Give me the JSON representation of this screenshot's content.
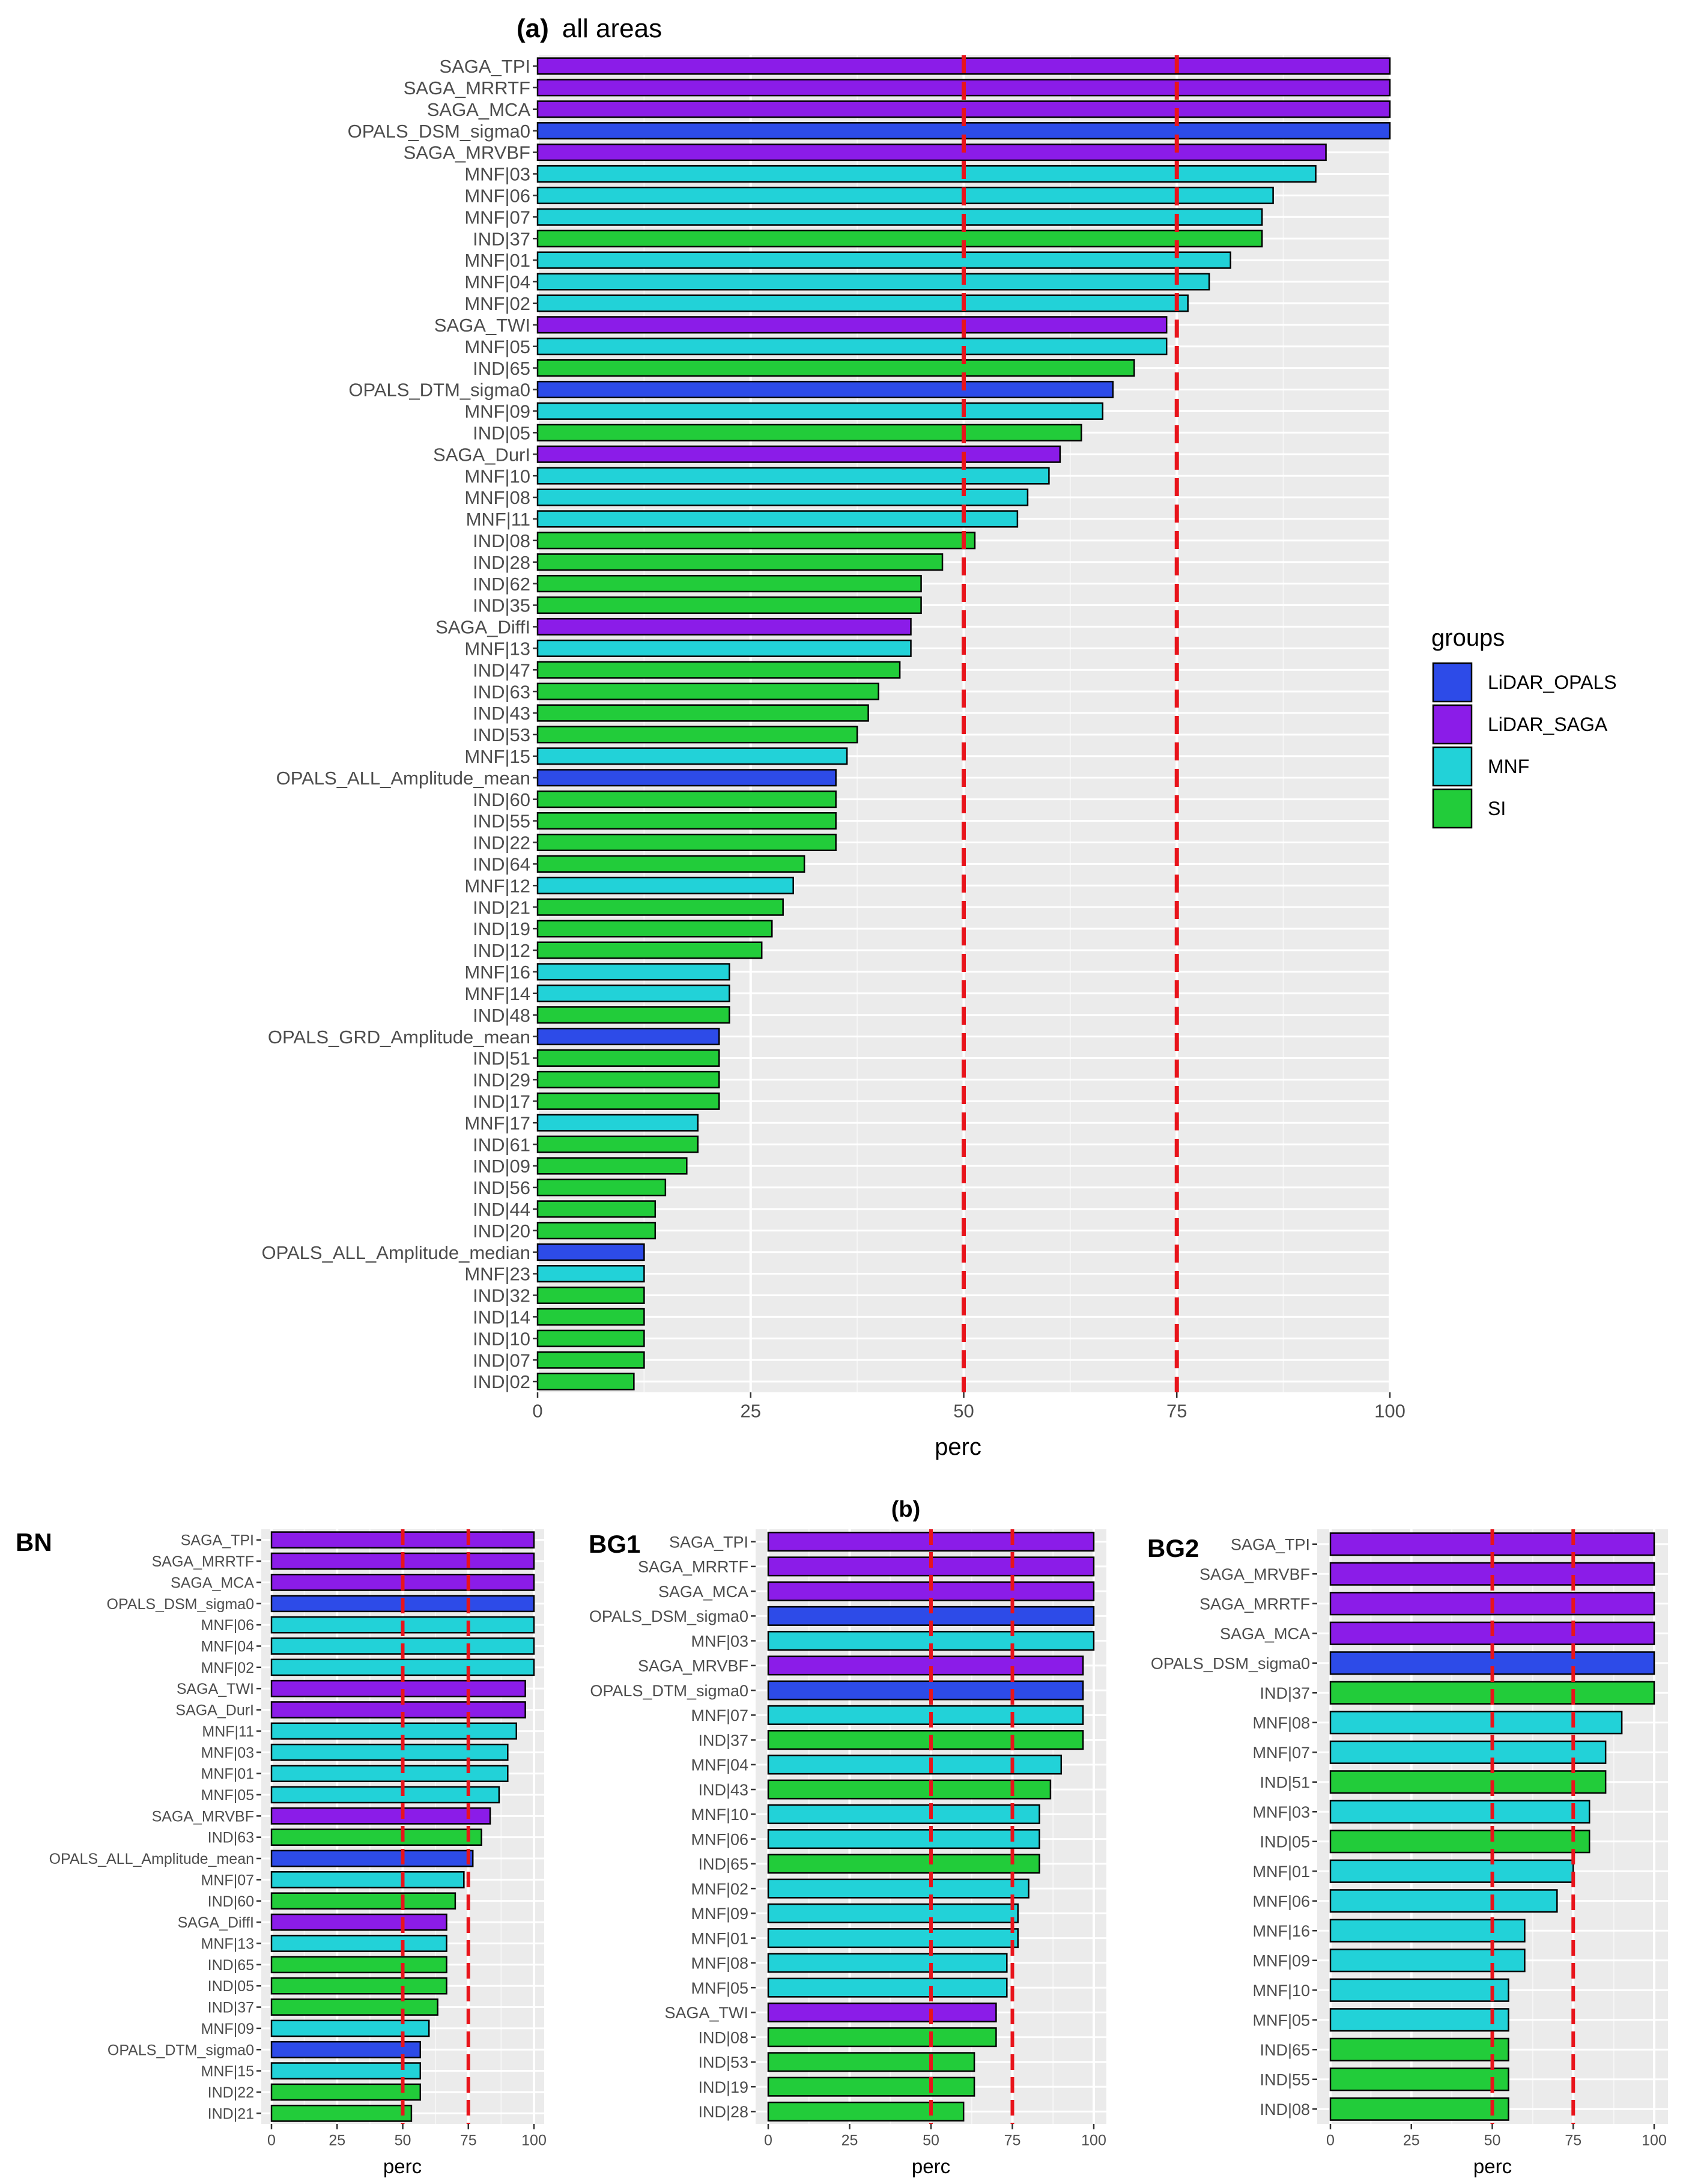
{
  "figure_label": "(b)",
  "chart_data": [
    {
      "id": "main",
      "type": "bar",
      "orientation": "horizontal",
      "title": "(a)  all areas",
      "xlabel": "perc",
      "ylabel": "",
      "xlim": [
        0,
        100
      ],
      "xticks": [
        0,
        25,
        50,
        75,
        100
      ],
      "reference_lines": [
        50,
        75
      ],
      "legend": {
        "title": "groups",
        "position": "right",
        "entries": [
          {
            "group": "LiDAR_OPALS",
            "label": "LiDAR_OPALS",
            "color": "#2d4be8"
          },
          {
            "group": "LiDAR_SAGA",
            "label": "LiDAR_SAGA",
            "color": "#8b1ce8"
          },
          {
            "group": "MNF",
            "label": "MNF",
            "color": "#22d2d8"
          },
          {
            "group": "SI",
            "label": "SI",
            "color": "#22cc3a"
          }
        ]
      },
      "categories": [
        "SAGA_TPI",
        "SAGA_MRRTF",
        "SAGA_MCA",
        "OPALS_DSM_sigma0",
        "SAGA_MRVBF",
        "MNF|03",
        "MNF|06",
        "MNF|07",
        "IND|37",
        "MNF|01",
        "MNF|04",
        "MNF|02",
        "SAGA_TWI",
        "MNF|05",
        "IND|65",
        "OPALS_DTM_sigma0",
        "MNF|09",
        "IND|05",
        "SAGA_DurI",
        "MNF|10",
        "MNF|08",
        "MNF|11",
        "IND|08",
        "IND|28",
        "IND|62",
        "IND|35",
        "SAGA_DiffI",
        "MNF|13",
        "IND|47",
        "IND|63",
        "IND|43",
        "IND|53",
        "MNF|15",
        "OPALS_ALL_Amplitude_mean",
        "IND|60",
        "IND|55",
        "IND|22",
        "IND|64",
        "MNF|12",
        "IND|21",
        "IND|19",
        "IND|12",
        "MNF|16",
        "MNF|14",
        "IND|48",
        "OPALS_GRD_Amplitude_mean",
        "IND|51",
        "IND|29",
        "IND|17",
        "MNF|17",
        "IND|61",
        "IND|09",
        "IND|56",
        "IND|44",
        "IND|20",
        "OPALS_ALL_Amplitude_median",
        "MNF|23",
        "IND|32",
        "IND|14",
        "IND|10",
        "IND|07",
        "IND|02"
      ],
      "values": [
        100,
        100,
        100,
        100,
        92.5,
        91.3,
        86.3,
        85,
        85,
        81.3,
        78.8,
        76.3,
        73.8,
        73.8,
        70,
        67.5,
        66.3,
        63.8,
        61.3,
        60,
        57.5,
        56.3,
        51.3,
        47.5,
        45,
        45,
        43.8,
        43.8,
        42.5,
        40,
        38.8,
        37.5,
        36.3,
        35,
        35,
        35,
        35,
        31.3,
        30,
        28.8,
        27.5,
        26.3,
        22.5,
        22.5,
        22.5,
        21.3,
        21.3,
        21.3,
        21.3,
        18.8,
        18.8,
        17.5,
        15,
        13.8,
        13.8,
        12.5,
        12.5,
        12.5,
        12.5,
        12.5,
        12.5,
        11.3
      ],
      "groups": [
        "LiDAR_SAGA",
        "LiDAR_SAGA",
        "LiDAR_SAGA",
        "LiDAR_OPALS",
        "LiDAR_SAGA",
        "MNF",
        "MNF",
        "MNF",
        "SI",
        "MNF",
        "MNF",
        "MNF",
        "LiDAR_SAGA",
        "MNF",
        "SI",
        "LiDAR_OPALS",
        "MNF",
        "SI",
        "LiDAR_SAGA",
        "MNF",
        "MNF",
        "MNF",
        "SI",
        "SI",
        "SI",
        "SI",
        "LiDAR_SAGA",
        "MNF",
        "SI",
        "SI",
        "SI",
        "SI",
        "MNF",
        "LiDAR_OPALS",
        "SI",
        "SI",
        "SI",
        "SI",
        "MNF",
        "SI",
        "SI",
        "SI",
        "MNF",
        "MNF",
        "SI",
        "LiDAR_OPALS",
        "SI",
        "SI",
        "SI",
        "MNF",
        "SI",
        "SI",
        "SI",
        "SI",
        "SI",
        "LiDAR_OPALS",
        "MNF",
        "SI",
        "SI",
        "SI",
        "SI",
        "SI"
      ]
    },
    {
      "id": "bn",
      "type": "bar",
      "orientation": "horizontal",
      "title": "BN",
      "xlabel": "perc",
      "ylabel": "",
      "xlim": [
        0,
        100
      ],
      "xticks": [
        0,
        25,
        50,
        75,
        100
      ],
      "reference_lines": [
        50,
        75
      ],
      "categories": [
        "SAGA_TPI",
        "SAGA_MRRTF",
        "SAGA_MCA",
        "OPALS_DSM_sigma0",
        "MNF|06",
        "MNF|04",
        "MNF|02",
        "SAGA_TWI",
        "SAGA_DurI",
        "MNF|11",
        "MNF|03",
        "MNF|01",
        "MNF|05",
        "SAGA_MRVBF",
        "IND|63",
        "OPALS_ALL_Amplitude_mean",
        "MNF|07",
        "IND|60",
        "SAGA_DiffI",
        "MNF|13",
        "IND|65",
        "IND|05",
        "IND|37",
        "MNF|09",
        "OPALS_DTM_sigma0",
        "MNF|15",
        "IND|22",
        "IND|21"
      ],
      "values": [
        100,
        100,
        100,
        100,
        100,
        100,
        100,
        96.7,
        96.7,
        93.3,
        90,
        90,
        86.7,
        83.3,
        80,
        76.7,
        73.3,
        70,
        66.7,
        66.7,
        66.7,
        66.7,
        63.3,
        60,
        56.7,
        56.7,
        56.7,
        53.3
      ],
      "groups": [
        "LiDAR_SAGA",
        "LiDAR_SAGA",
        "LiDAR_SAGA",
        "LiDAR_OPALS",
        "MNF",
        "MNF",
        "MNF",
        "LiDAR_SAGA",
        "LiDAR_SAGA",
        "MNF",
        "MNF",
        "MNF",
        "MNF",
        "LiDAR_SAGA",
        "SI",
        "LiDAR_OPALS",
        "MNF",
        "SI",
        "LiDAR_SAGA",
        "MNF",
        "SI",
        "SI",
        "SI",
        "MNF",
        "LiDAR_OPALS",
        "MNF",
        "SI",
        "SI"
      ]
    },
    {
      "id": "bg1",
      "type": "bar",
      "orientation": "horizontal",
      "title": "BG1",
      "xlabel": "perc",
      "ylabel": "",
      "xlim": [
        0,
        100
      ],
      "xticks": [
        0,
        25,
        50,
        75,
        100
      ],
      "reference_lines": [
        50,
        75
      ],
      "categories": [
        "SAGA_TPI",
        "SAGA_MRRTF",
        "SAGA_MCA",
        "OPALS_DSM_sigma0",
        "MNF|03",
        "SAGA_MRVBF",
        "OPALS_DTM_sigma0",
        "MNF|07",
        "IND|37",
        "MNF|04",
        "IND|43",
        "MNF|10",
        "MNF|06",
        "IND|65",
        "MNF|02",
        "MNF|09",
        "MNF|01",
        "MNF|08",
        "MNF|05",
        "SAGA_TWI",
        "IND|08",
        "IND|53",
        "IND|19",
        "IND|28"
      ],
      "values": [
        100,
        100,
        100,
        100,
        100,
        96.7,
        96.7,
        96.7,
        96.7,
        90,
        86.7,
        83.3,
        83.3,
        83.3,
        80,
        76.7,
        76.7,
        73.3,
        73.3,
        70,
        70,
        63.3,
        63.3,
        60
      ],
      "groups": [
        "LiDAR_SAGA",
        "LiDAR_SAGA",
        "LiDAR_SAGA",
        "LiDAR_OPALS",
        "MNF",
        "LiDAR_SAGA",
        "LiDAR_OPALS",
        "MNF",
        "SI",
        "MNF",
        "SI",
        "MNF",
        "MNF",
        "SI",
        "MNF",
        "MNF",
        "MNF",
        "MNF",
        "MNF",
        "LiDAR_SAGA",
        "SI",
        "SI",
        "SI",
        "SI"
      ]
    },
    {
      "id": "bg2",
      "type": "bar",
      "orientation": "horizontal",
      "title": "BG2",
      "xlabel": "perc",
      "ylabel": "",
      "xlim": [
        0,
        100
      ],
      "xticks": [
        0,
        25,
        50,
        75,
        100
      ],
      "reference_lines": [
        50,
        75
      ],
      "categories": [
        "SAGA_TPI",
        "SAGA_MRVBF",
        "SAGA_MRRTF",
        "SAGA_MCA",
        "OPALS_DSM_sigma0",
        "IND|37",
        "MNF|08",
        "MNF|07",
        "IND|51",
        "MNF|03",
        "IND|05",
        "MNF|01",
        "MNF|06",
        "MNF|16",
        "MNF|09",
        "MNF|10",
        "MNF|05",
        "IND|65",
        "IND|55",
        "IND|08"
      ],
      "values": [
        100,
        100,
        100,
        100,
        100,
        100,
        90,
        85,
        85,
        80,
        80,
        75,
        70,
        60,
        60,
        55,
        55,
        55,
        55,
        55
      ],
      "groups": [
        "LiDAR_SAGA",
        "LiDAR_SAGA",
        "LiDAR_SAGA",
        "LiDAR_SAGA",
        "LiDAR_OPALS",
        "SI",
        "MNF",
        "MNF",
        "SI",
        "MNF",
        "SI",
        "MNF",
        "MNF",
        "MNF",
        "MNF",
        "MNF",
        "MNF",
        "SI",
        "SI",
        "SI"
      ]
    }
  ]
}
